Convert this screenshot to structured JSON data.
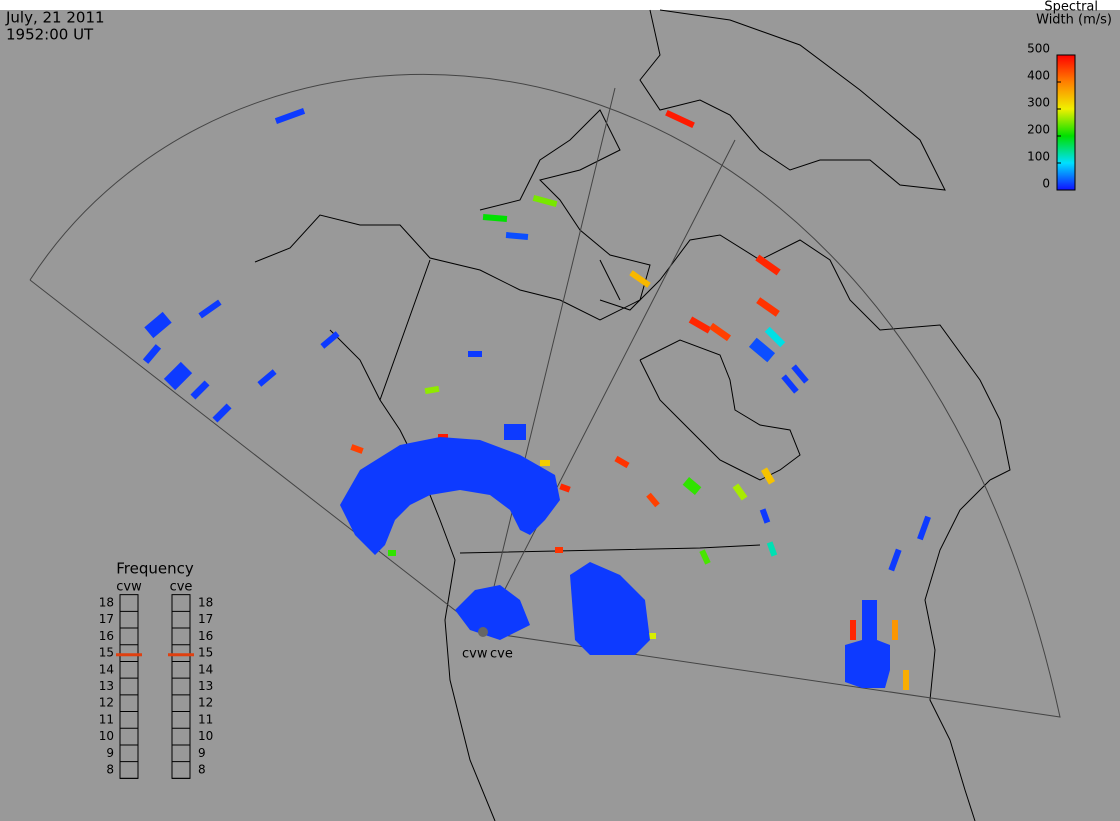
{
  "header": {
    "date": "July, 21 2011",
    "time": "1952:00 UT"
  },
  "radars": [
    "cvw",
    "cve"
  ],
  "colorbar": {
    "title_lines": [
      "Spectral",
      "Width (m/s)"
    ],
    "range": [
      0,
      500
    ],
    "ticks": [
      0,
      100,
      200,
      300,
      400,
      500
    ],
    "colors": [
      "#1010ff",
      "#00e0ff",
      "#00e000",
      "#f0f000",
      "#ff8000",
      "#ff0000"
    ]
  },
  "echoes": [
    20,
    480,
    200,
    250,
    30,
    350,
    470,
    460,
    470,
    450,
    110,
    30,
    20,
    20,
    20,
    20,
    20,
    20,
    20,
    20,
    20,
    20,
    20,
    260,
    460,
    220,
    270,
    340,
    450,
    20,
    130,
    230,
    20,
    20,
    330,
    210,
    470,
    460,
    220,
    480,
    450,
    360,
    470,
    380,
    460,
    290,
    20,
    20,
    20,
    20,
    20
  ],
  "frequency": {
    "title": "Frequency",
    "range": [
      8,
      18
    ],
    "ticks": [
      18,
      17,
      16,
      15,
      14,
      13,
      12,
      11,
      10,
      9,
      8
    ],
    "radars": [
      {
        "name": "cvw",
        "value": 14.9,
        "color": "#e04010"
      },
      {
        "name": "cve",
        "value": 14.9,
        "color": "#e04010"
      }
    ]
  }
}
